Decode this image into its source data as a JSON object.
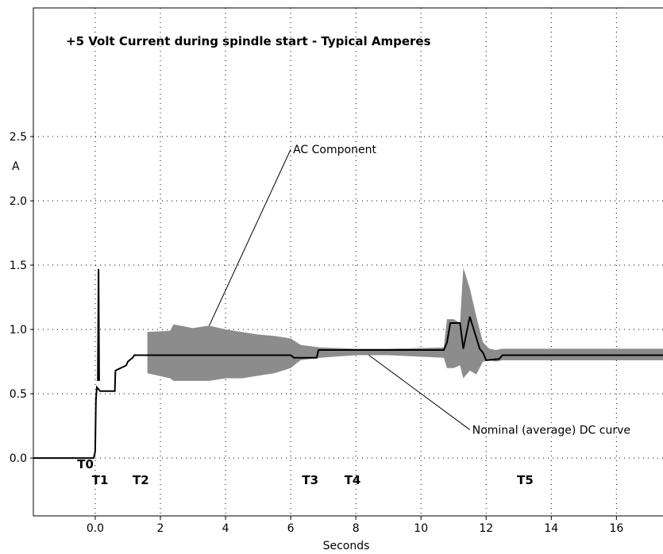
{
  "chart_data": {
    "type": "line",
    "title": "+5 Volt Current during spindle start - Typical Amperes",
    "xlabel": "Seconds",
    "ylabel": "A",
    "xlim": [
      -1.9,
      17.6
    ],
    "ylim": [
      -0.45,
      3.5
    ],
    "grid": true,
    "x_ticks": [
      {
        "value": 0,
        "label": "0.0"
      },
      {
        "value": 2,
        "label": "2"
      },
      {
        "value": 4,
        "label": "4"
      },
      {
        "value": 6,
        "label": "6"
      },
      {
        "value": 8,
        "label": "8"
      },
      {
        "value": 10,
        "label": "10"
      },
      {
        "value": 12,
        "label": "12"
      },
      {
        "value": 14,
        "label": "14"
      },
      {
        "value": 16,
        "label": "16"
      }
    ],
    "y_ticks": [
      {
        "value": 0.0,
        "label": "0.0"
      },
      {
        "value": 0.5,
        "label": "0.5"
      },
      {
        "value": 1.0,
        "label": "1.0"
      },
      {
        "value": 1.5,
        "label": "1.5"
      },
      {
        "value": 2.0,
        "label": "2.0"
      },
      {
        "value": 2.5,
        "label": "2.5"
      }
    ],
    "series": [
      {
        "color": "#000000",
        "x": [
          -1.9,
          -0.05,
          0.0,
          0.02,
          0.05,
          0.15,
          0.2,
          0.6,
          0.62,
          0.95,
          1.0,
          1.15,
          1.2,
          6.0,
          6.1,
          6.8,
          6.85,
          10.7,
          10.8,
          10.9,
          11.2,
          11.3,
          11.5,
          11.8,
          11.9,
          12.0,
          12.4,
          12.5,
          17.6
        ],
        "y": [
          0.0,
          0.0,
          0.05,
          0.45,
          0.55,
          0.52,
          0.52,
          0.52,
          0.68,
          0.72,
          0.75,
          0.78,
          0.8,
          0.8,
          0.78,
          0.78,
          0.84,
          0.84,
          0.9,
          1.05,
          1.05,
          0.85,
          1.1,
          0.85,
          0.82,
          0.76,
          0.77,
          0.8,
          0.8
        ]
      },
      {
        "color": "#000000",
        "x": [
          0.08,
          0.1,
          0.12
        ],
        "y": [
          0.6,
          1.47,
          0.6
        ]
      }
    ],
    "ac_band": {
      "color": "#8c8c8c",
      "x": [
        1.6,
        2.3,
        2.4,
        3.0,
        3.5,
        4.0,
        4.5,
        5.0,
        5.5,
        6.0,
        6.3,
        6.9,
        8.0,
        9.0,
        10.7,
        10.8,
        11.0,
        11.2,
        11.3,
        11.5,
        11.7,
        11.9,
        12.1,
        12.3,
        12.5,
        17.6
      ],
      "low": [
        0.66,
        0.62,
        0.6,
        0.6,
        0.6,
        0.62,
        0.62,
        0.64,
        0.66,
        0.7,
        0.76,
        0.78,
        0.8,
        0.8,
        0.78,
        0.7,
        0.7,
        0.72,
        0.62,
        0.68,
        0.65,
        0.75,
        0.76,
        0.75,
        0.76,
        0.76
      ],
      "high": [
        0.98,
        0.99,
        1.04,
        1.01,
        1.03,
        1.0,
        0.98,
        0.96,
        0.95,
        0.93,
        0.88,
        0.86,
        0.85,
        0.85,
        0.86,
        1.08,
        1.08,
        1.05,
        1.48,
        1.32,
        1.1,
        0.9,
        0.85,
        0.84,
        0.85,
        0.85
      ]
    },
    "time_markers": [
      {
        "label": "T0",
        "x": -0.3,
        "row": 1
      },
      {
        "label": "T1",
        "x": 0.15,
        "row": 2
      },
      {
        "label": "T2",
        "x": 1.4,
        "row": 2
      },
      {
        "label": "T3",
        "x": 6.6,
        "row": 2
      },
      {
        "label": "T4",
        "x": 7.9,
        "row": 2
      },
      {
        "label": "T5",
        "x": 13.2,
        "row": 2
      }
    ],
    "annotations": [
      {
        "text": "AC Component",
        "from": [
          3.5,
          1.03
        ],
        "to": [
          6.0,
          2.4
        ]
      },
      {
        "text": "Nominal (average) DC curve",
        "from": [
          8.4,
          0.8
        ],
        "to": [
          11.5,
          0.22
        ]
      }
    ]
  }
}
